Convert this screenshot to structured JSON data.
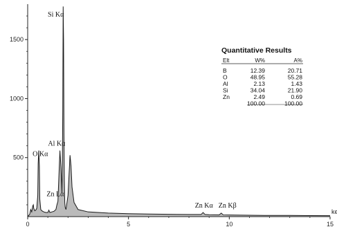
{
  "chart_data": {
    "type": "line",
    "xlabel": "ke",
    "ylabel": "",
    "xlim": [
      0,
      15
    ],
    "ylim": [
      0,
      1800
    ],
    "x_ticks": [
      0,
      5,
      10,
      15
    ],
    "y_ticks": [
      500,
      1000,
      1500
    ],
    "grid": false,
    "series": [
      {
        "x": [
          0.0,
          0.1,
          0.15,
          0.2,
          0.25,
          0.28,
          0.3,
          0.35,
          0.4,
          0.45,
          0.5,
          0.52,
          0.55,
          0.58,
          0.6,
          0.65,
          0.7,
          0.8,
          0.9,
          1.0,
          1.05,
          1.1,
          1.2,
          1.3,
          1.4,
          1.45,
          1.5,
          1.55,
          1.6,
          1.65,
          1.7,
          1.72,
          1.74,
          1.76,
          1.78,
          1.8,
          1.82,
          1.84,
          1.86,
          1.9,
          2.0,
          2.05,
          2.1,
          2.15,
          2.2,
          2.3,
          2.5,
          3.0,
          4.0,
          5.0,
          6.0,
          7.0,
          8.0,
          8.6,
          8.7,
          8.8,
          9.0,
          9.5,
          9.6,
          9.7,
          10.0,
          11.0,
          12.0,
          13.0,
          14.0,
          15.0
        ],
        "y": [
          0,
          20,
          60,
          40,
          90,
          100,
          70,
          50,
          55,
          70,
          180,
          450,
          560,
          430,
          150,
          60,
          50,
          40,
          35,
          35,
          55,
          35,
          40,
          45,
          60,
          100,
          130,
          350,
          560,
          420,
          200,
          450,
          900,
          1780,
          1500,
          700,
          300,
          120,
          80,
          60,
          180,
          350,
          520,
          430,
          250,
          120,
          60,
          40,
          30,
          25,
          22,
          20,
          18,
          18,
          35,
          18,
          16,
          15,
          30,
          15,
          14,
          12,
          10,
          10,
          9,
          8
        ]
      }
    ],
    "annotations": [
      {
        "text": "Si Kα",
        "x": 1.74,
        "y": 1780
      },
      {
        "text": "Al Kα",
        "x": 1.49,
        "y": 560
      },
      {
        "text": "O Kα",
        "x": 0.52,
        "y": 450
      },
      {
        "text": "Zn Lα",
        "x": 1.01,
        "y": 90
      },
      {
        "text": "Zn Kα",
        "x": 8.64,
        "y": 35
      },
      {
        "text": "Zn Kβ",
        "x": 9.57,
        "y": 35
      }
    ]
  },
  "results": {
    "title": "Quantitative Results",
    "columns": [
      "Elt",
      "W%",
      "A%"
    ],
    "rows": [
      [
        "B",
        "12.39",
        "20.71"
      ],
      [
        "O",
        "48.95",
        "55.28"
      ],
      [
        "Al",
        "2.13",
        "1.43"
      ],
      [
        "Si",
        "34.04",
        "21.90"
      ],
      [
        "Zn",
        "2.49",
        "0.69"
      ],
      [
        "",
        "100.00",
        "100.00"
      ]
    ]
  }
}
